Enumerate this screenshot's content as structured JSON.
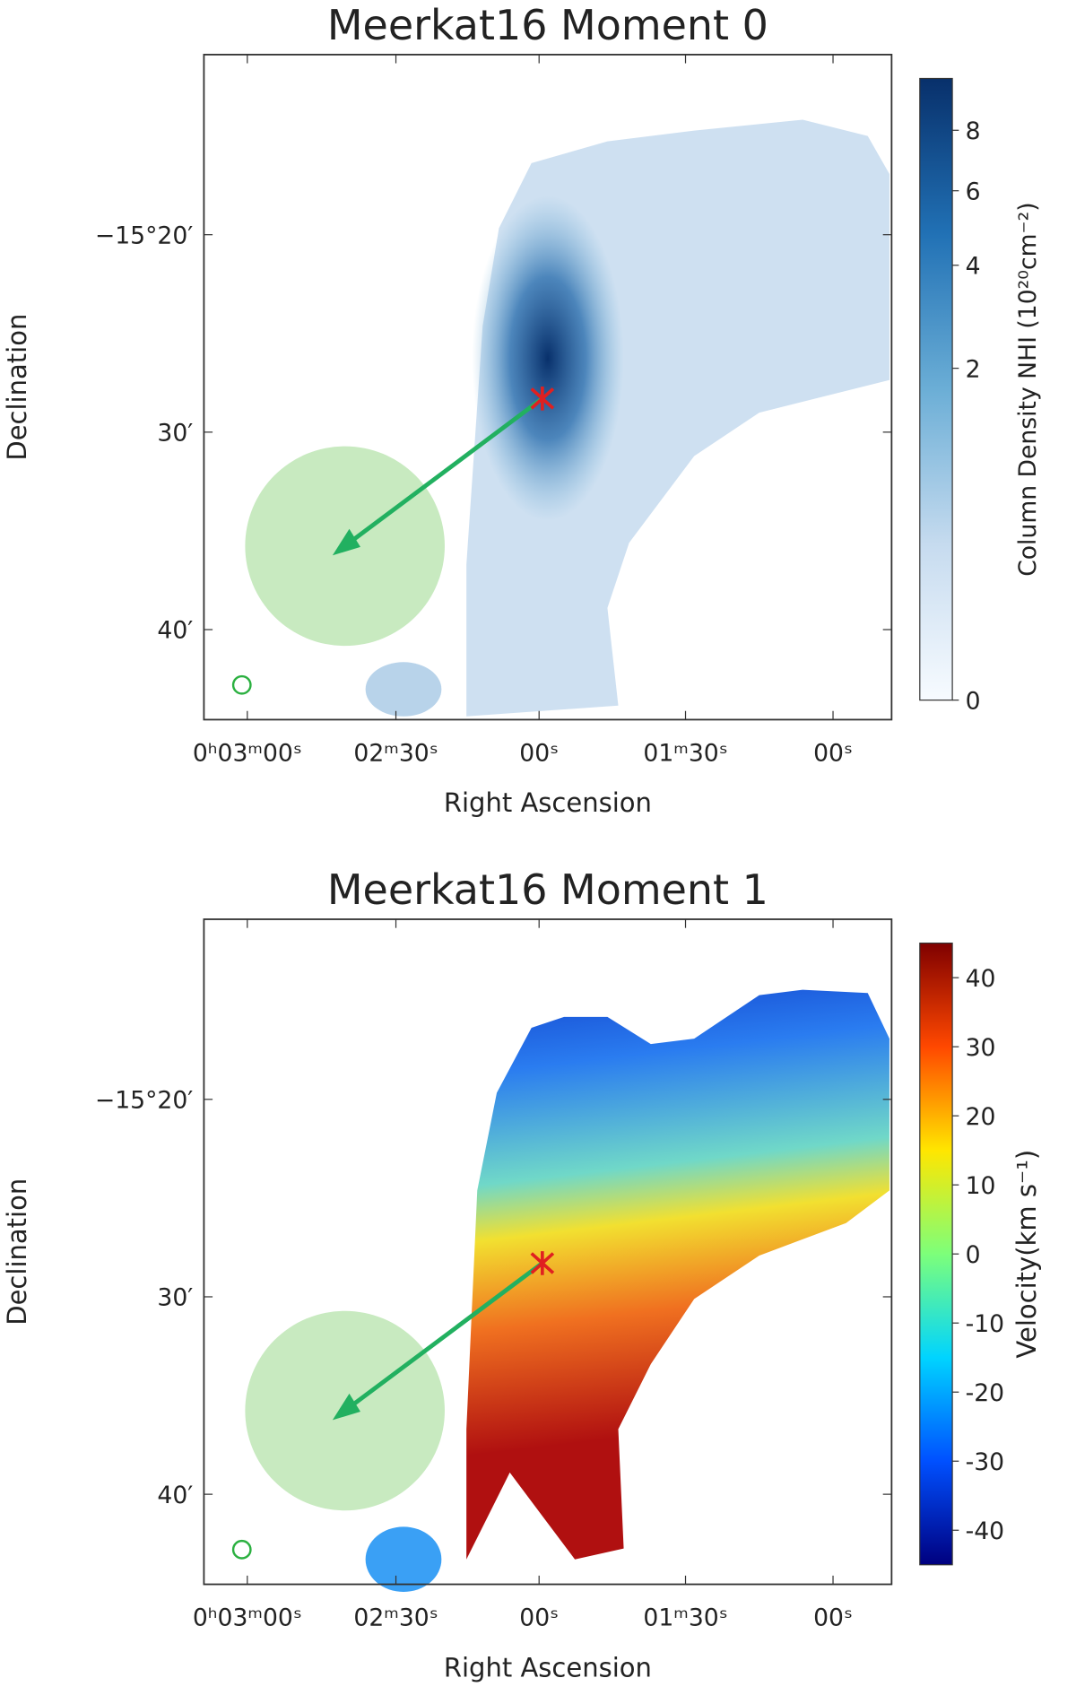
{
  "panels": [
    {
      "title": "Meerkat16 Moment 0",
      "xlabel": "Right Ascension",
      "ylabel": "Declination",
      "xticks": [
        "0ʰ03ᵐ00ˢ",
        "02ᵐ30ˢ",
        "00ˢ",
        "01ᵐ30ˢ",
        "00ˢ"
      ],
      "yticks": [
        "−15°20′",
        "30′",
        "40′"
      ],
      "colorbar": {
        "label": "Column Density NHI (10²⁰cm⁻²)",
        "ticks": [
          0,
          2,
          4,
          6,
          8
        ],
        "lim": [
          0,
          10
        ],
        "power": 0.39,
        "colors": [
          "#f7fbff",
          "#c6dbef",
          "#6baed6",
          "#2171b5",
          "#08306b"
        ]
      }
    },
    {
      "title": "Meerkat16 Moment 1",
      "xlabel": "Right Ascension",
      "ylabel": "Declination",
      "xticks": [
        "0ʰ03ᵐ00ˢ",
        "02ᵐ30ˢ",
        "00ˢ",
        "01ᵐ30ˢ",
        "00ˢ"
      ],
      "yticks": [
        "−15°20′",
        "30′",
        "40′"
      ],
      "colorbar": {
        "label": "Velocity(km s⁻¹)",
        "ticks": [
          -40,
          -30,
          -20,
          -10,
          0,
          10,
          20,
          30,
          40
        ],
        "lim": [
          -45,
          45
        ],
        "power": 1,
        "colors": [
          "#00007f",
          "#0050ff",
          "#00d4ff",
          "#7dff7a",
          "#ffe600",
          "#ff4800",
          "#7f0000"
        ]
      }
    }
  ]
}
